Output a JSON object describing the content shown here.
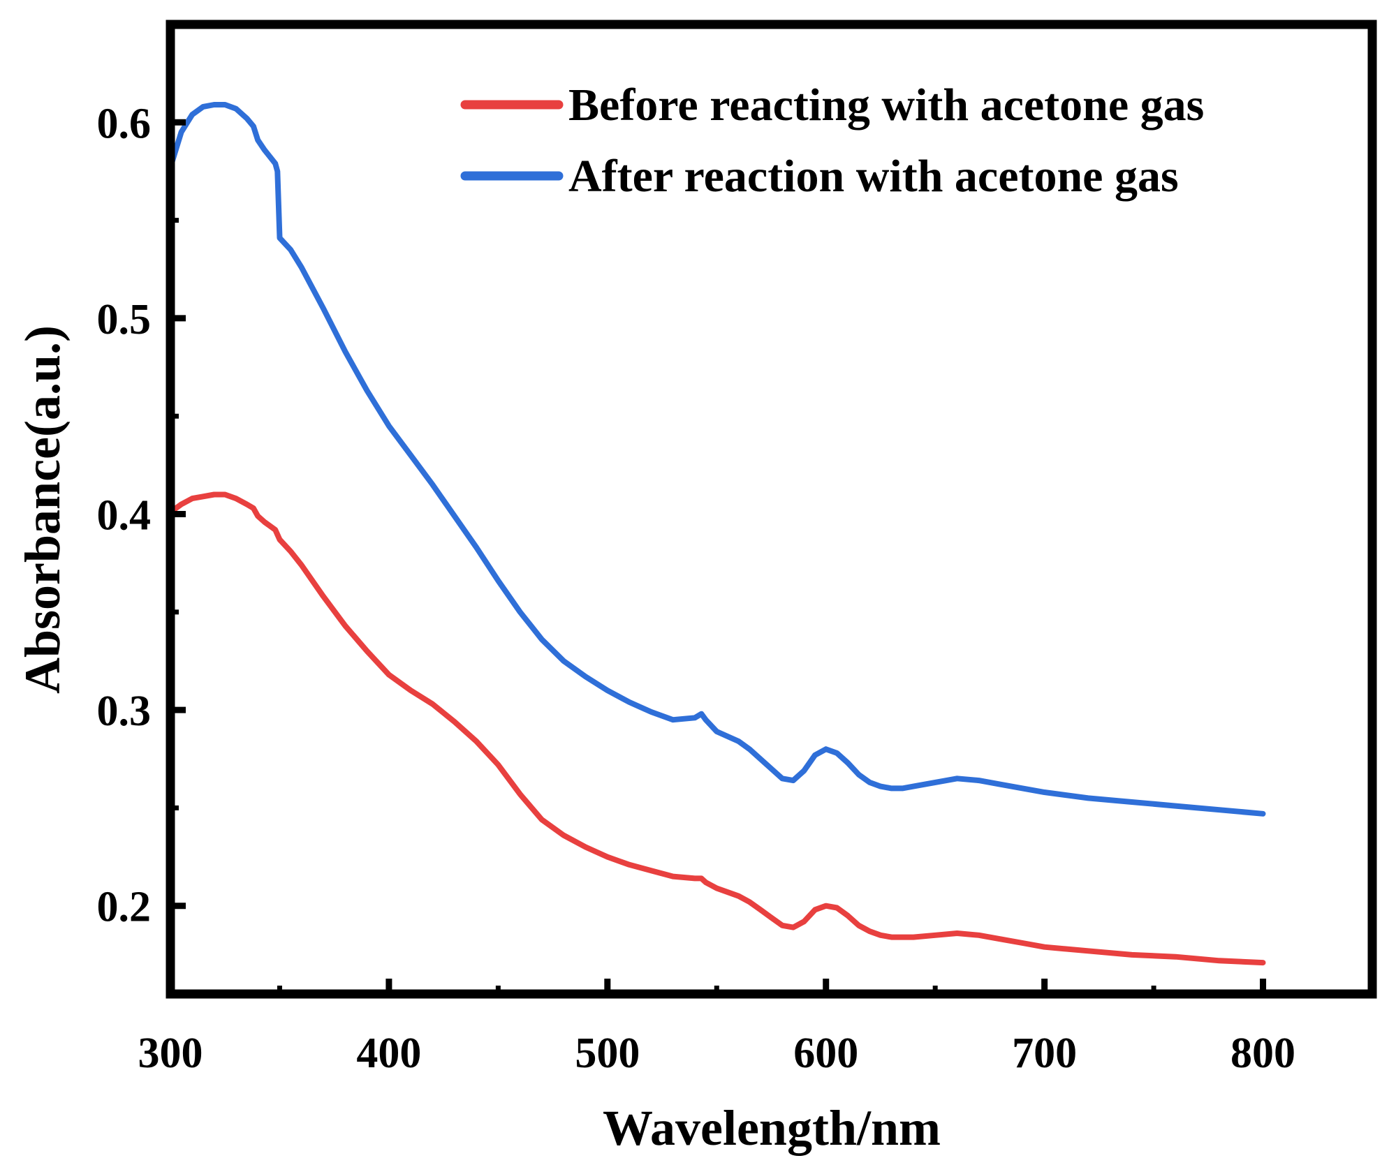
{
  "chart_data": {
    "type": "line",
    "title": "",
    "xlabel": "Wavelength/nm",
    "ylabel": "Absorbance(a.u.)",
    "xlim": [
      300,
      850
    ],
    "ylim": [
      0.155,
      0.65
    ],
    "xticks": [
      300,
      400,
      500,
      600,
      700,
      800
    ],
    "xtick_labels": [
      "300",
      "400",
      "500",
      "600",
      "700",
      "800"
    ],
    "yticks": [
      0.2,
      0.3,
      0.4,
      0.5,
      0.6
    ],
    "ytick_labels": [
      "0.2",
      "0.3",
      "0.4",
      "0.5",
      "0.6"
    ],
    "grid": false,
    "legend_position": "top-right",
    "series": [
      {
        "name": "Before reacting with acetone gas",
        "color": "#e8403f",
        "x": [
          300,
          305,
          310,
          315,
          320,
          325,
          330,
          335,
          338,
          340,
          343,
          348,
          350,
          355,
          360,
          370,
          380,
          390,
          400,
          410,
          420,
          430,
          440,
          450,
          460,
          470,
          480,
          490,
          500,
          510,
          520,
          530,
          540,
          543,
          545,
          550,
          560,
          565,
          570,
          575,
          580,
          585,
          590,
          595,
          600,
          605,
          610,
          615,
          620,
          625,
          630,
          635,
          640,
          650,
          660,
          670,
          680,
          690,
          700,
          720,
          740,
          760,
          780,
          800
        ],
        "y": [
          0.401,
          0.405,
          0.408,
          0.409,
          0.41,
          0.41,
          0.408,
          0.405,
          0.403,
          0.399,
          0.396,
          0.392,
          0.387,
          0.381,
          0.374,
          0.358,
          0.343,
          0.33,
          0.318,
          0.31,
          0.303,
          0.294,
          0.284,
          0.272,
          0.257,
          0.244,
          0.236,
          0.23,
          0.225,
          0.221,
          0.218,
          0.215,
          0.214,
          0.214,
          0.212,
          0.209,
          0.205,
          0.202,
          0.198,
          0.194,
          0.19,
          0.189,
          0.192,
          0.198,
          0.2,
          0.199,
          0.195,
          0.19,
          0.187,
          0.185,
          0.184,
          0.184,
          0.184,
          0.185,
          0.186,
          0.185,
          0.183,
          0.181,
          0.179,
          0.177,
          0.175,
          0.174,
          0.172,
          0.171
        ]
      },
      {
        "name": "After reaction with acetone gas",
        "color": "#2f6fd8",
        "x": [
          300,
          305,
          310,
          315,
          320,
          325,
          330,
          335,
          338,
          340,
          343,
          348,
          349,
          350,
          355,
          360,
          370,
          380,
          390,
          400,
          410,
          420,
          430,
          440,
          450,
          460,
          470,
          480,
          490,
          500,
          510,
          520,
          530,
          540,
          543,
          545,
          550,
          560,
          565,
          570,
          575,
          580,
          585,
          590,
          595,
          600,
          605,
          610,
          615,
          620,
          625,
          630,
          635,
          640,
          650,
          660,
          670,
          680,
          690,
          700,
          720,
          740,
          760,
          780,
          800
        ],
        "y": [
          0.577,
          0.595,
          0.604,
          0.608,
          0.609,
          0.609,
          0.607,
          0.602,
          0.598,
          0.591,
          0.586,
          0.579,
          0.575,
          0.541,
          0.535,
          0.526,
          0.505,
          0.483,
          0.463,
          0.445,
          0.43,
          0.415,
          0.399,
          0.383,
          0.366,
          0.35,
          0.336,
          0.325,
          0.317,
          0.31,
          0.304,
          0.299,
          0.295,
          0.296,
          0.298,
          0.295,
          0.289,
          0.284,
          0.28,
          0.275,
          0.27,
          0.265,
          0.264,
          0.269,
          0.277,
          0.28,
          0.278,
          0.273,
          0.267,
          0.263,
          0.261,
          0.26,
          0.26,
          0.261,
          0.263,
          0.265,
          0.264,
          0.262,
          0.26,
          0.258,
          0.255,
          0.253,
          0.251,
          0.249,
          0.247
        ]
      }
    ]
  }
}
